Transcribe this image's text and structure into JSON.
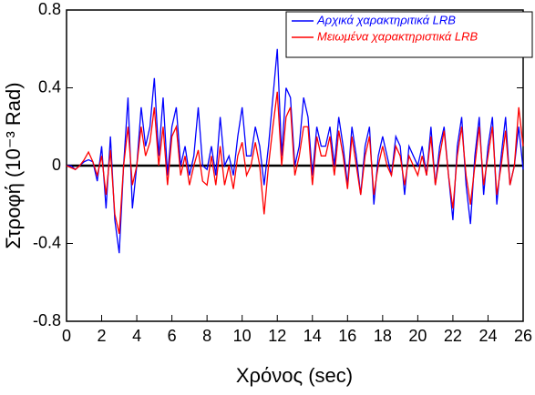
{
  "chart_data": {
    "type": "line",
    "xlabel": "Χρόνος (sec)",
    "ylabel": "Στροφή (10⁻³ Rad)",
    "x": [
      0,
      0.25,
      0.5,
      0.75,
      1,
      1.25,
      1.5,
      1.75,
      2,
      2.25,
      2.5,
      2.75,
      3,
      3.25,
      3.5,
      3.75,
      4,
      4.25,
      4.5,
      4.75,
      5,
      5.25,
      5.5,
      5.75,
      6,
      6.25,
      6.5,
      6.75,
      7,
      7.25,
      7.5,
      7.75,
      8,
      8.25,
      8.5,
      8.75,
      9,
      9.25,
      9.5,
      9.75,
      10,
      10.25,
      10.5,
      10.75,
      11,
      11.25,
      11.5,
      11.75,
      12,
      12.25,
      12.5,
      12.75,
      13,
      13.25,
      13.5,
      13.75,
      14,
      14.25,
      14.5,
      14.75,
      15,
      15.25,
      15.5,
      15.75,
      16,
      16.25,
      16.5,
      16.75,
      17,
      17.25,
      17.5,
      17.75,
      18,
      18.25,
      18.5,
      18.75,
      19,
      19.25,
      19.5,
      19.75,
      20,
      20.25,
      20.5,
      20.75,
      21,
      21.25,
      21.5,
      21.75,
      22,
      22.25,
      22.5,
      22.75,
      23,
      23.25,
      23.5,
      23.75,
      24,
      24.25,
      24.5,
      24.75,
      25,
      25.25,
      25.5,
      25.75,
      26
    ],
    "series": [
      {
        "name": "Αρχικά χαρακτηριτικά LRB",
        "color": "#0000ff",
        "values": [
          0,
          0,
          -0.02,
          0,
          0.02,
          0.03,
          0.02,
          -0.08,
          0.1,
          -0.22,
          0.15,
          -0.28,
          -0.45,
          0,
          0.35,
          -0.22,
          0,
          0.3,
          0.1,
          0.2,
          0.45,
          0.05,
          0.35,
          -0.05,
          0.2,
          0.3,
          0,
          0.1,
          -0.05,
          0.05,
          0.3,
          0,
          -0.02,
          0.1,
          -0.05,
          0.25,
          0,
          0.05,
          -0.05,
          0.15,
          0.3,
          0.05,
          0.05,
          0.2,
          0.1,
          -0.1,
          0.1,
          0.35,
          0.6,
          0.05,
          0.4,
          0.35,
          0,
          0.1,
          0.35,
          0.25,
          -0.05,
          0.2,
          0.1,
          0.1,
          0.2,
          0,
          0.25,
          0.1,
          -0.1,
          0.2,
          0.05,
          -0.15,
          0.1,
          0.2,
          -0.2,
          0.05,
          0.15,
          0.05,
          -0.05,
          0.15,
          0.1,
          -0.15,
          0.1,
          0.05,
          0,
          0.1,
          -0.05,
          0.2,
          -0.1,
          0.1,
          0.2,
          -0.05,
          -0.28,
          0.1,
          0.25,
          -0.1,
          -0.3,
          0.05,
          0.25,
          -0.15,
          0.1,
          0.25,
          -0.2,
          0.05,
          0.25,
          -0.1,
          0,
          0.2,
          -0.02
        ]
      },
      {
        "name": "Μειωμένα χαρακτηριστικά LRB",
        "color": "#ff0000",
        "values": [
          0,
          -0.01,
          -0.02,
          0,
          0.03,
          0.07,
          0.02,
          -0.05,
          0.05,
          -0.15,
          0.08,
          -0.25,
          -0.35,
          0,
          0.2,
          -0.1,
          0,
          0.2,
          0.05,
          0.12,
          0.3,
          0,
          0.2,
          -0.1,
          0.15,
          0.2,
          -0.05,
          0.05,
          -0.1,
          0,
          0.08,
          -0.08,
          -0.1,
          0.05,
          -0.1,
          0.1,
          -0.1,
          0,
          -0.12,
          0.05,
          0.12,
          -0.05,
          0,
          0.12,
          0,
          -0.25,
          0,
          0.2,
          0.38,
          0,
          0.25,
          0.3,
          -0.05,
          0.05,
          0.2,
          0.2,
          -0.1,
          0.15,
          0.05,
          0.05,
          0.15,
          -0.05,
          0.18,
          0.05,
          -0.12,
          0.15,
          0,
          -0.15,
          0.05,
          0.15,
          -0.15,
          0,
          0.1,
          0,
          -0.05,
          0.1,
          0.05,
          -0.1,
          0.05,
          0,
          -0.05,
          0.05,
          -0.05,
          0.15,
          -0.1,
          0.05,
          0.18,
          -0.05,
          -0.22,
          0.05,
          0.2,
          -0.05,
          -0.2,
          0,
          0.2,
          -0.1,
          0.05,
          0.2,
          -0.15,
          0,
          0.18,
          -0.1,
          0,
          0.3,
          0.1
        ]
      }
    ],
    "xlim": [
      0,
      26
    ],
    "xticks": [
      0,
      2,
      4,
      6,
      8,
      10,
      12,
      14,
      16,
      18,
      20,
      22,
      24,
      26
    ],
    "ylim": [
      -0.8,
      0.8
    ],
    "yticks": [
      -0.8,
      -0.4,
      0,
      0.4,
      0.8
    ],
    "legend": "upper right"
  }
}
